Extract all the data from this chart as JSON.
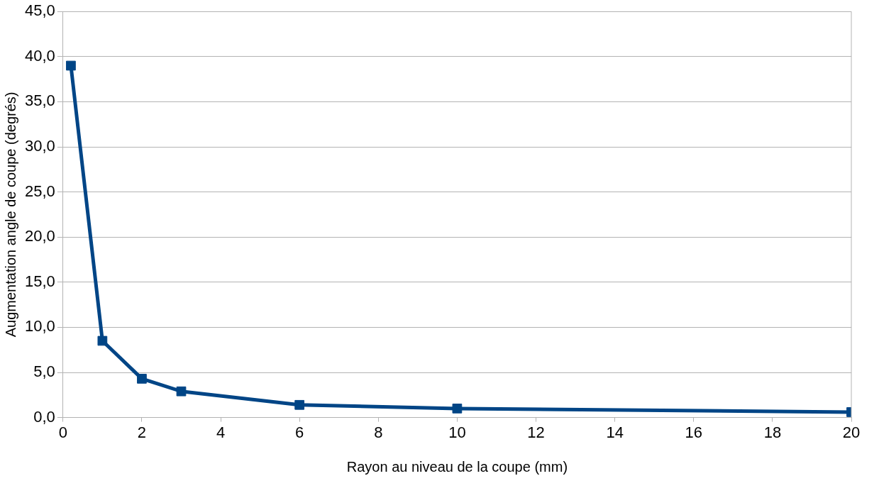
{
  "chart_data": {
    "type": "line",
    "xlabel": "Rayon au niveau de la coupe (mm)",
    "ylabel": "Augmentation angle de coupe (degrés)",
    "x": [
      0.2,
      1,
      2,
      3,
      6,
      10,
      20
    ],
    "series": [
      {
        "color": "#004586",
        "values": [
          39.0,
          8.5,
          4.3,
          2.9,
          1.4,
          1.0,
          0.6
        ]
      }
    ],
    "xlim": [
      0,
      20
    ],
    "xticks": [
      0,
      2,
      4,
      6,
      8,
      10,
      12,
      14,
      16,
      18,
      20
    ],
    "ylim": [
      0,
      45
    ],
    "yticks": [
      {
        "value": 0,
        "label": "0,0"
      },
      {
        "value": 5,
        "label": "5,0"
      },
      {
        "value": 10,
        "label": "10,0"
      },
      {
        "value": 15,
        "label": "15,0"
      },
      {
        "value": 20,
        "label": "20,0"
      },
      {
        "value": 25,
        "label": "25,0"
      },
      {
        "value": 30,
        "label": "30,0"
      },
      {
        "value": 35,
        "label": "35,0"
      },
      {
        "value": 40,
        "label": "40,0"
      },
      {
        "value": 45,
        "label": "45,0"
      }
    ],
    "grid": "y",
    "marker": "square",
    "line_style": "solid",
    "legend": false
  }
}
